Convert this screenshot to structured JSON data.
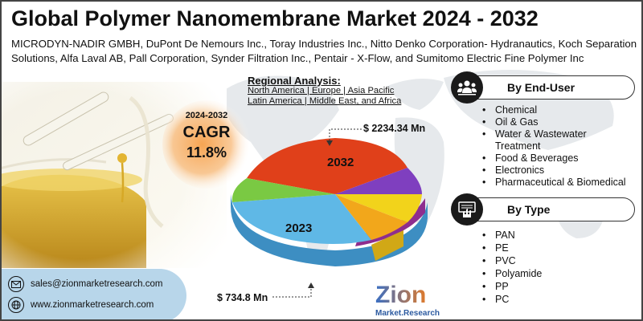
{
  "title": "Global Polymer Nanomembrane Market 2024 - 2032",
  "companies": "MICRODYN-NADIR GMBH, DuPont De Nemours Inc., Toray Industries Inc., Nitto Denko Corporation- Hydranautics, Koch Separation Solutions, Alfa Laval AB, Pall Corporation, Synder Filtration Inc., Pentair - X-Flow, and Sumitomo Electric Fine Polymer Inc",
  "cagr": {
    "years": "2024-2032",
    "label": "CAGR",
    "value": "11.8%"
  },
  "regional": {
    "heading": "Regional Analysis:",
    "line1": "North America | Europe | Asia Pacific",
    "line2": "Latin America | Middle East, and Africa"
  },
  "pie": {
    "year_top": "2032",
    "year_bottom": "2023",
    "value_top": "$ 2234.34 Mn",
    "value_bottom": "$ 734.8 Mn",
    "colors": [
      "#e0401a",
      "#7f3fbf",
      "#f2d31b",
      "#f2a71b",
      "#5fb8e6",
      "#7ac943"
    ]
  },
  "end_user": {
    "heading": "By End-User",
    "items": [
      "Chemical",
      "Oil & Gas",
      "Water & Wastewater Treatment",
      "Food & Beverages",
      "Electronics",
      "Pharmaceutical & Biomedical"
    ]
  },
  "type": {
    "heading": "By Type",
    "items": [
      "PAN",
      "PE",
      "PVC",
      "Polyamide",
      "PP",
      "PC"
    ]
  },
  "contact": {
    "email": "sales@zionmarketresearch.com",
    "website": "www.zionmarketresearch.com"
  },
  "logo": {
    "main": "Zion",
    "sub": "Market.Research"
  }
}
